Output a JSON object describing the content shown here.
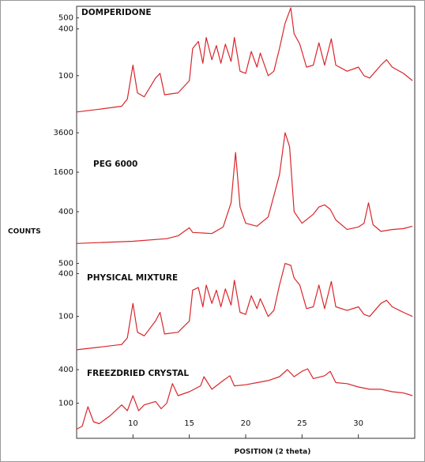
{
  "chart_data": [
    {
      "type": "line",
      "title": "DOMPERIDONE",
      "color": "#d9262b",
      "yscale": "sqrt",
      "xlim": [
        5,
        35
      ],
      "ylim": [
        0,
        600
      ],
      "yticks": [
        100,
        400,
        500
      ],
      "x": [
        5,
        7,
        9,
        9.5,
        10,
        10.4,
        11,
        12,
        12.4,
        12.8,
        14,
        15,
        15.3,
        15.8,
        16.2,
        16.5,
        17,
        17.4,
        17.8,
        18.2,
        18.7,
        19,
        19.5,
        20,
        20.5,
        21,
        21.3,
        22,
        22.5,
        23,
        23.5,
        24,
        24.3,
        24.8,
        25.4,
        26,
        26.5,
        27,
        27.6,
        28,
        29,
        30,
        30.5,
        31,
        32,
        32.5,
        33,
        34,
        34.8
      ],
      "values": [
        5,
        8,
        12,
        25,
        150,
        40,
        30,
        90,
        110,
        35,
        40,
        80,
        250,
        300,
        160,
        330,
        180,
        270,
        160,
        280,
        170,
        330,
        120,
        110,
        230,
        140,
        220,
        100,
        120,
        250,
        450,
        600,
        360,
        280,
        140,
        150,
        290,
        150,
        320,
        150,
        120,
        140,
        100,
        90,
        150,
        180,
        140,
        110,
        80
      ]
    },
    {
      "type": "line",
      "title": "PEG 6000",
      "ylabel": "COUNTS",
      "color": "#d9262b",
      "yscale": "sqrt",
      "xlim": [
        5,
        35
      ],
      "ylim": [
        0,
        4000
      ],
      "yticks": [
        400,
        1600,
        3600
      ],
      "x": [
        5,
        10,
        13,
        14,
        15,
        15.3,
        17,
        18,
        18.7,
        19.1,
        19.5,
        20,
        21,
        22,
        23,
        23.5,
        23.9,
        24.3,
        25,
        26,
        26.5,
        27,
        27.5,
        28,
        29,
        30,
        30.5,
        30.9,
        31.3,
        32,
        33,
        34,
        34.8
      ],
      "values": [
        15,
        25,
        40,
        60,
        140,
        90,
        80,
        150,
        600,
        2500,
        500,
        200,
        160,
        300,
        1500,
        3600,
        2800,
        400,
        200,
        350,
        500,
        550,
        450,
        250,
        120,
        150,
        200,
        600,
        180,
        100,
        120,
        130,
        160
      ]
    },
    {
      "type": "line",
      "title": "PHYSICAL MIXTURE",
      "color": "#d9262b",
      "yscale": "sqrt",
      "xlim": [
        5,
        35
      ],
      "ylim": [
        0,
        600
      ],
      "yticks": [
        100,
        400,
        500
      ],
      "x": [
        5,
        7,
        9,
        9.5,
        10,
        10.4,
        11,
        12,
        12.4,
        12.8,
        14,
        15,
        15.3,
        15.8,
        16.2,
        16.5,
        17,
        17.4,
        17.8,
        18.2,
        18.7,
        19,
        19.5,
        20,
        20.5,
        21,
        21.3,
        22,
        22.5,
        23,
        23.5,
        24,
        24.3,
        24.8,
        25.4,
        26,
        26.5,
        27,
        27.6,
        28,
        29,
        30,
        30.5,
        31,
        32,
        32.5,
        33,
        34,
        34.8
      ],
      "values": [
        5,
        8,
        12,
        25,
        170,
        40,
        30,
        80,
        120,
        35,
        40,
        80,
        260,
        280,
        150,
        300,
        170,
        260,
        150,
        270,
        160,
        340,
        120,
        110,
        220,
        140,
        200,
        100,
        130,
        300,
        500,
        480,
        360,
        300,
        140,
        150,
        300,
        140,
        330,
        150,
        130,
        150,
        110,
        100,
        170,
        190,
        150,
        120,
        100
      ]
    },
    {
      "type": "line",
      "title": "FREEZDRIED CRYSTAL",
      "xlabel": "POSITION (2 theta)",
      "color": "#d9262b",
      "yscale": "sqrt",
      "xlim": [
        5,
        35
      ],
      "ylim": [
        0,
        500
      ],
      "yticks": [
        100,
        400
      ],
      "xticks": [
        10,
        15,
        20,
        25,
        30
      ],
      "x": [
        5,
        5.5,
        6,
        6.5,
        7,
        8,
        9,
        9.5,
        10,
        10.5,
        11,
        12,
        12.5,
        13,
        13.5,
        14,
        15,
        16,
        16.3,
        17,
        18,
        18.6,
        19,
        20,
        21,
        22,
        23,
        23.7,
        24.3,
        25,
        25.5,
        26,
        27,
        27.5,
        28,
        29,
        30,
        31,
        32,
        33,
        34,
        34.8
      ],
      "values": [
        5,
        10,
        80,
        20,
        15,
        40,
        90,
        60,
        150,
        60,
        90,
        110,
        70,
        100,
        250,
        150,
        180,
        230,
        320,
        200,
        280,
        330,
        230,
        240,
        260,
        280,
        320,
        400,
        320,
        380,
        410,
        300,
        330,
        380,
        260,
        250,
        220,
        200,
        200,
        180,
        170,
        150
      ]
    }
  ]
}
